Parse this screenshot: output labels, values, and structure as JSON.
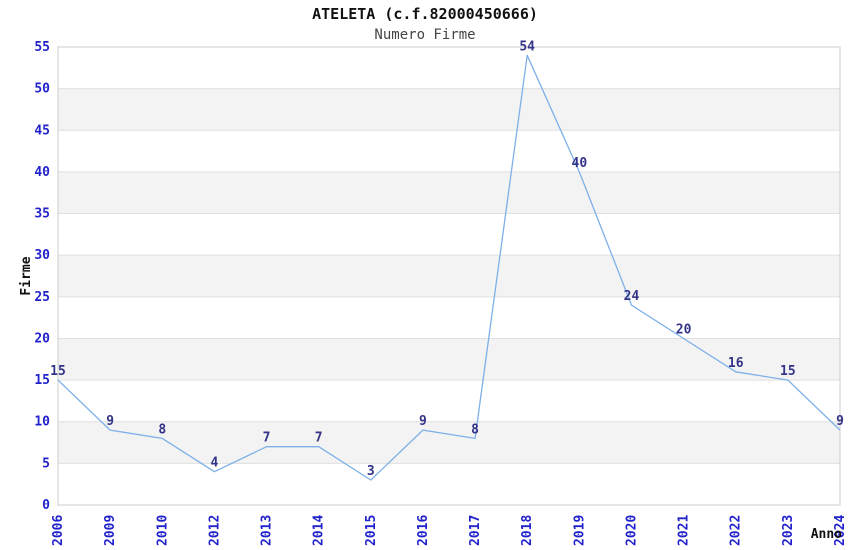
{
  "chart_data": {
    "type": "line",
    "title": "ATELETA (c.f.82000450666)",
    "subtitle": "Numero Firme",
    "xlabel": "Anno",
    "ylabel": "Firme",
    "categories": [
      "2006",
      "2009",
      "2010",
      "2012",
      "2013",
      "2014",
      "2015",
      "2016",
      "2017",
      "2018",
      "2019",
      "2020",
      "2021",
      "2022",
      "2023",
      "2024"
    ],
    "values": [
      15,
      9,
      8,
      4,
      7,
      7,
      3,
      9,
      8,
      54,
      40,
      24,
      20,
      16,
      15,
      9
    ],
    "ylim": [
      0,
      55
    ],
    "ytick_step": 5,
    "grid": true,
    "legend": "none",
    "shaded_bands": [
      [
        5,
        10
      ],
      [
        15,
        20
      ],
      [
        25,
        30
      ],
      [
        35,
        40
      ],
      [
        45,
        50
      ]
    ],
    "colors": {
      "line": "#7db0e8",
      "tick_label": "#2222cc",
      "data_label": "#333388",
      "band": "#f3f3f3",
      "gridline": "#e0e0e0",
      "plot_border": "#cccccc",
      "title": "#111111",
      "subtitle": "#444444",
      "axis_title": "#111111",
      "background": "#ffffff"
    }
  }
}
